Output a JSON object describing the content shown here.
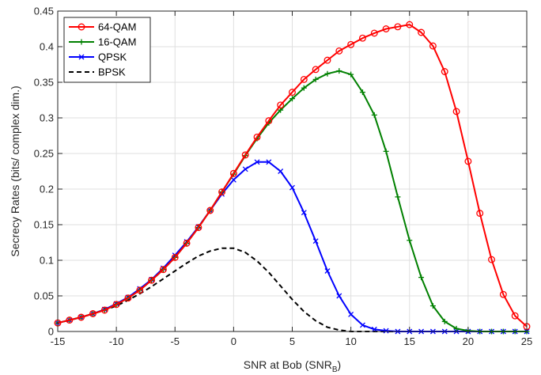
{
  "chart_data": {
    "type": "line",
    "title": "",
    "xlabel": "SNR at Bob (SNR",
    "xlabel_sub": "B",
    "xlabel_close": ")",
    "ylabel": "Secrecy Rates (bits/ complex dim.)",
    "xlim": [
      -15,
      25
    ],
    "ylim": [
      0,
      0.45
    ],
    "xticks": [
      -15,
      -10,
      -5,
      0,
      5,
      10,
      15,
      20,
      25
    ],
    "yticks": [
      0,
      0.05,
      0.1,
      0.15,
      0.2,
      0.25,
      0.3,
      0.35,
      0.4,
      0.45
    ],
    "xtick_labels": [
      "-15",
      "-10",
      "-5",
      "0",
      "5",
      "10",
      "15",
      "20",
      "25"
    ],
    "ytick_labels": [
      "0",
      "0.05",
      "0.1",
      "0.15",
      "0.2",
      "0.25",
      "0.3",
      "0.35",
      "0.4",
      "0.45"
    ],
    "grid": true,
    "legend_position": "top-left",
    "series": [
      {
        "name": "64-QAM",
        "color": "#ff0000",
        "marker": "circle",
        "linestyle": "solid",
        "x": [
          -15,
          -14,
          -13,
          -12,
          -11,
          -10,
          -9,
          -8,
          -7,
          -6,
          -5,
          -4,
          -3,
          -2,
          -1,
          0,
          1,
          2,
          3,
          4,
          5,
          6,
          7,
          8,
          9,
          10,
          11,
          12,
          13,
          14,
          15,
          16,
          17,
          18,
          19,
          20,
          21,
          22,
          23,
          24,
          25
        ],
        "y": [
          0.012,
          0.016,
          0.02,
          0.025,
          0.03,
          0.038,
          0.047,
          0.058,
          0.072,
          0.087,
          0.104,
          0.124,
          0.146,
          0.17,
          0.196,
          0.222,
          0.248,
          0.273,
          0.296,
          0.318,
          0.336,
          0.354,
          0.368,
          0.381,
          0.394,
          0.403,
          0.412,
          0.419,
          0.425,
          0.428,
          0.431,
          0.42,
          0.401,
          0.365,
          0.309,
          0.239,
          0.166,
          0.101,
          0.052,
          0.022,
          0.007
        ]
      },
      {
        "name": "16-QAM",
        "color": "#008000",
        "marker": "plus",
        "linestyle": "solid",
        "x": [
          -15,
          -14,
          -13,
          -12,
          -11,
          -10,
          -9,
          -8,
          -7,
          -6,
          -5,
          -4,
          -3,
          -2,
          -1,
          0,
          1,
          2,
          3,
          4,
          5,
          6,
          7,
          8,
          9,
          10,
          11,
          12,
          13,
          14,
          15,
          16,
          17,
          18,
          19,
          20,
          21,
          22,
          23,
          24,
          25
        ],
        "y": [
          0.012,
          0.016,
          0.02,
          0.025,
          0.03,
          0.038,
          0.047,
          0.058,
          0.072,
          0.087,
          0.104,
          0.124,
          0.146,
          0.17,
          0.196,
          0.221,
          0.247,
          0.271,
          0.293,
          0.311,
          0.327,
          0.342,
          0.354,
          0.362,
          0.366,
          0.361,
          0.336,
          0.304,
          0.253,
          0.189,
          0.128,
          0.076,
          0.036,
          0.014,
          0.004,
          0.001,
          0,
          0,
          0,
          0,
          0
        ]
      },
      {
        "name": "QPSK",
        "color": "#0000ff",
        "marker": "x",
        "linestyle": "solid",
        "x": [
          -15,
          -14,
          -13,
          -12,
          -11,
          -10,
          -9,
          -8,
          -7,
          -6,
          -5,
          -4,
          -3,
          -2,
          -1,
          0,
          1,
          2,
          3,
          4,
          5,
          6,
          7,
          8,
          9,
          10,
          11,
          12,
          13,
          14,
          15,
          16,
          17,
          18,
          19,
          20,
          21,
          22,
          23,
          24,
          25
        ],
        "y": [
          0.012,
          0.016,
          0.02,
          0.025,
          0.031,
          0.039,
          0.048,
          0.06,
          0.073,
          0.089,
          0.107,
          0.126,
          0.147,
          0.17,
          0.193,
          0.213,
          0.228,
          0.238,
          0.238,
          0.225,
          0.202,
          0.167,
          0.127,
          0.085,
          0.05,
          0.024,
          0.009,
          0.003,
          0.001,
          0,
          0,
          0,
          0,
          0,
          0,
          0,
          0,
          0,
          0,
          0,
          0
        ]
      },
      {
        "name": "BPSK",
        "color": "#000000",
        "marker": "none",
        "linestyle": "dashed",
        "x": [
          -15,
          -14,
          -13,
          -12,
          -11,
          -10,
          -9,
          -8,
          -7,
          -6,
          -5,
          -4,
          -3,
          -2,
          -1,
          0,
          1,
          2,
          3,
          4,
          5,
          6,
          7,
          8,
          9,
          10,
          11,
          12,
          13,
          14,
          15,
          16,
          17,
          18,
          19,
          20,
          21,
          22,
          23,
          24,
          25
        ],
        "y": [
          0.012,
          0.016,
          0.02,
          0.025,
          0.03,
          0.036,
          0.044,
          0.053,
          0.063,
          0.074,
          0.085,
          0.096,
          0.106,
          0.113,
          0.117,
          0.117,
          0.111,
          0.099,
          0.083,
          0.064,
          0.045,
          0.028,
          0.015,
          0.006,
          0.002,
          0,
          0,
          0,
          0,
          0,
          0,
          0,
          0,
          0,
          0,
          0,
          0,
          0,
          0,
          0,
          0
        ]
      }
    ]
  }
}
